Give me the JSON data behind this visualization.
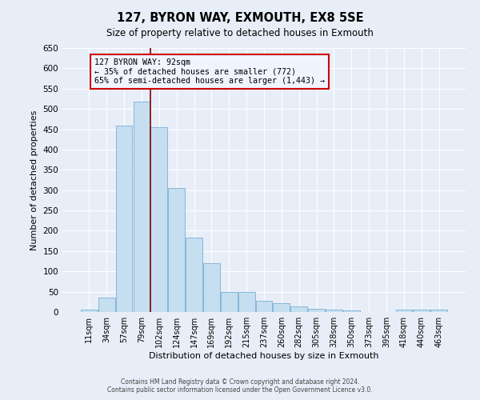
{
  "title": "127, BYRON WAY, EXMOUTH, EX8 5SE",
  "subtitle": "Size of property relative to detached houses in Exmouth",
  "xlabel": "Distribution of detached houses by size in Exmouth",
  "ylabel": "Number of detached properties",
  "bar_labels": [
    "11sqm",
    "34sqm",
    "57sqm",
    "79sqm",
    "102sqm",
    "124sqm",
    "147sqm",
    "169sqm",
    "192sqm",
    "215sqm",
    "237sqm",
    "260sqm",
    "282sqm",
    "305sqm",
    "328sqm",
    "350sqm",
    "373sqm",
    "395sqm",
    "418sqm",
    "440sqm",
    "463sqm"
  ],
  "bar_values": [
    5,
    35,
    458,
    518,
    455,
    305,
    183,
    120,
    50,
    50,
    28,
    22,
    13,
    8,
    5,
    3,
    0,
    0,
    5,
    5,
    5
  ],
  "bar_color": "#c5dff0",
  "bar_edge_color": "#7bafd4",
  "highlight_line_color": "#8b0000",
  "annotation_text_line1": "127 BYRON WAY: 92sqm",
  "annotation_text_line2": "← 35% of detached houses are smaller (772)",
  "annotation_text_line3": "65% of semi-detached houses are larger (1,443) →",
  "annotation_box_facecolor": "#f0f4ff",
  "annotation_box_edgecolor": "#cc0000",
  "ylim": [
    0,
    650
  ],
  "yticks": [
    0,
    50,
    100,
    150,
    200,
    250,
    300,
    350,
    400,
    450,
    500,
    550,
    600,
    650
  ],
  "footer_line1": "Contains HM Land Registry data © Crown copyright and database right 2024.",
  "footer_line2": "Contains public sector information licensed under the Open Government Licence v3.0.",
  "bg_color": "#e8eef8",
  "grid_color": "#ffffff"
}
